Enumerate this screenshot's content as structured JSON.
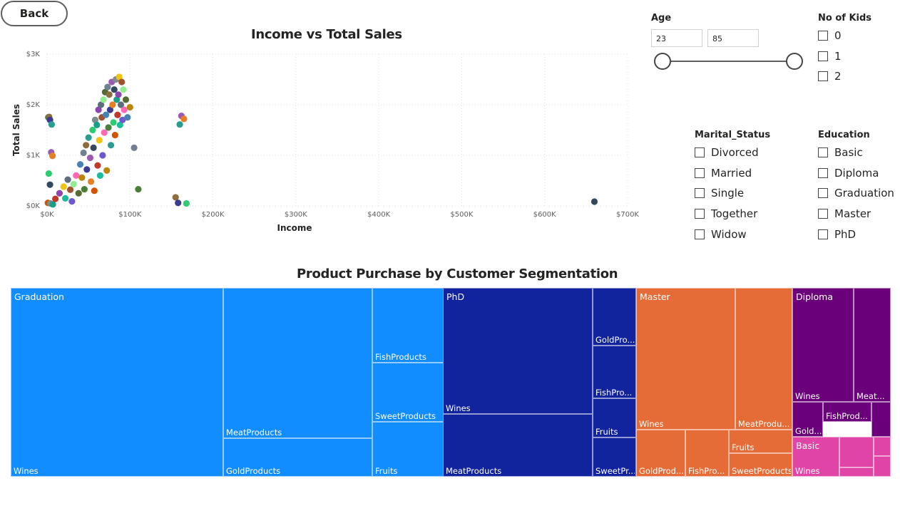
{
  "back_button": {
    "label": "Back"
  },
  "scatter": {
    "title": "Income vs Total Sales",
    "xlabel": "Income",
    "ylabel": "Total Sales",
    "x_ticks": [
      "$0K",
      "$100K",
      "$200K",
      "$300K",
      "$400K",
      "$500K",
      "$600K",
      "$700K"
    ],
    "y_ticks": [
      "$0K",
      "$1K",
      "$2K",
      "$3K"
    ]
  },
  "age_slicer": {
    "title": "Age",
    "min": "23",
    "max": "85",
    "range_low": 23,
    "range_high": 85
  },
  "kids_slicer": {
    "title": "No of Kids",
    "options": [
      "0",
      "1",
      "2"
    ]
  },
  "marital_slicer": {
    "title": "Marital_Status",
    "options": [
      "Divorced",
      "Married",
      "Single",
      "Together",
      "Widow"
    ]
  },
  "education_slicer": {
    "title": "Education",
    "options": [
      "Basic",
      "Diploma",
      "Graduation",
      "Master",
      "PhD"
    ]
  },
  "treemap": {
    "title": "Product Purchase by Customer Segmentation",
    "groups": [
      {
        "name": "Graduation",
        "color": "#118dff",
        "items": [
          {
            "label": "Wines"
          },
          {
            "label": "MeatProducts"
          },
          {
            "label": "GoldProducts"
          },
          {
            "label": "FishProducts"
          },
          {
            "label": "SweetProducts"
          },
          {
            "label": "Fruits"
          }
        ]
      },
      {
        "name": "PhD",
        "color": "#12239e",
        "items": [
          {
            "label": "Wines"
          },
          {
            "label": "MeatProducts"
          },
          {
            "label": "GoldPro..."
          },
          {
            "label": "FishPro..."
          },
          {
            "label": "Fruits"
          },
          {
            "label": "SweetPr..."
          }
        ]
      },
      {
        "name": "Master",
        "color": "#e66c37",
        "items": [
          {
            "label": "Wines"
          },
          {
            "label": "MeatProdu..."
          },
          {
            "label": "GoldProd..."
          },
          {
            "label": "FishPro..."
          },
          {
            "label": "Fruits"
          },
          {
            "label": "SweetProducts"
          }
        ]
      },
      {
        "name": "Diploma",
        "color": "#6b007b",
        "items": [
          {
            "label": "Wines"
          },
          {
            "label": "Meat..."
          },
          {
            "label": "Gold..."
          },
          {
            "label": "FishProd..."
          },
          {
            "label": ""
          }
        ]
      },
      {
        "name": "Basic",
        "color": "#e044a7",
        "items": [
          {
            "label": "Wines"
          },
          {
            "label": ""
          },
          {
            "label": ""
          },
          {
            "label": ""
          },
          {
            "label": ""
          }
        ]
      }
    ]
  },
  "chart_data": [
    {
      "type": "scatter",
      "title": "Income vs Total Sales",
      "xlabel": "Income",
      "ylabel": "Total Sales",
      "xlim": [
        0,
        700000
      ],
      "ylim": [
        0,
        3000
      ],
      "grid": true,
      "points": [
        [
          1500,
          1750
        ],
        [
          2500,
          1760
        ],
        [
          3500,
          1700
        ],
        [
          5500,
          1610
        ],
        [
          5000,
          1060
        ],
        [
          6500,
          990
        ],
        [
          2000,
          640
        ],
        [
          3500,
          420
        ],
        [
          1000,
          60
        ],
        [
          4000,
          50
        ],
        [
          7000,
          30
        ],
        [
          10000,
          140
        ],
        [
          15000,
          250
        ],
        [
          20000,
          380
        ],
        [
          22000,
          150
        ],
        [
          25000,
          520
        ],
        [
          28000,
          320
        ],
        [
          30000,
          90
        ],
        [
          32000,
          430
        ],
        [
          35000,
          600
        ],
        [
          38000,
          250
        ],
        [
          40000,
          820
        ],
        [
          42000,
          560
        ],
        [
          44000,
          1050
        ],
        [
          45000,
          330
        ],
        [
          47000,
          1200
        ],
        [
          48000,
          720
        ],
        [
          50000,
          1350
        ],
        [
          52000,
          950
        ],
        [
          53000,
          480
        ],
        [
          55000,
          1500
        ],
        [
          56000,
          1150
        ],
        [
          57000,
          300
        ],
        [
          58000,
          1700
        ],
        [
          60000,
          1600
        ],
        [
          61000,
          800
        ],
        [
          62000,
          1900
        ],
        [
          63000,
          1300
        ],
        [
          64000,
          600
        ],
        [
          65000,
          2000
        ],
        [
          66000,
          1750
        ],
        [
          67000,
          1000
        ],
        [
          68000,
          2100
        ],
        [
          69000,
          1450
        ],
        [
          70000,
          2250
        ],
        [
          71000,
          1800
        ],
        [
          72000,
          700
        ],
        [
          73000,
          2350
        ],
        [
          74000,
          1550
        ],
        [
          75000,
          2200
        ],
        [
          76000,
          1900
        ],
        [
          77000,
          1200
        ],
        [
          78000,
          2450
        ],
        [
          79000,
          2000
        ],
        [
          80000,
          1650
        ],
        [
          81000,
          2300
        ],
        [
          82000,
          1400
        ],
        [
          83000,
          2500
        ],
        [
          84000,
          2100
        ],
        [
          85000,
          1800
        ],
        [
          86000,
          2200
        ],
        [
          87000,
          2550
        ],
        [
          88000,
          1600
        ],
        [
          89000,
          2000
        ],
        [
          90000,
          2450
        ],
        [
          91000,
          1700
        ],
        [
          92000,
          2300
        ],
        [
          93000,
          1900
        ],
        [
          95000,
          2100
        ],
        [
          97000,
          1750
        ],
        [
          100000,
          1950
        ],
        [
          105000,
          1150
        ],
        [
          110000,
          330
        ],
        [
          155000,
          170
        ],
        [
          158000,
          60
        ],
        [
          160000,
          1610
        ],
        [
          162000,
          1780
        ],
        [
          165000,
          1720
        ],
        [
          168000,
          50
        ],
        [
          660000,
          85
        ]
      ]
    },
    {
      "type": "heatmap",
      "title": "Product Purchase by Customer Segmentation",
      "categories": [
        "Graduation",
        "PhD",
        "Master",
        "Diploma",
        "Basic"
      ],
      "series": [
        {
          "name": "Graduation",
          "values": {
            "Wines": 320000,
            "MeatProducts": 200000,
            "GoldProducts": 57000,
            "FishProducts": 55000,
            "SweetProducts": 33000,
            "Fruits": 26000
          }
        },
        {
          "name": "PhD",
          "values": {
            "Wines": 220000,
            "MeatProducts": 125000,
            "GoldPro...": 16000,
            "FishPro...": 16000,
            "Fruits": 10000,
            "SweetPr...": 10000
          }
        },
        {
          "name": "Master",
          "values": {
            "Wines": 120000,
            "MeatProdu...": 70000,
            "GoldProd...": 15000,
            "FishPro...": 14000,
            "Fruits": 6000,
            "SweetProducts": 8000
          }
        },
        {
          "name": "Diploma",
          "values": {
            "Wines": 43000,
            "Meat...": 24000,
            "Gold...": 7000,
            "FishProd...": 6000
          }
        },
        {
          "name": "Basic",
          "values": {
            "Wines": 3500,
            "MeatProducts": 1500,
            "GoldProducts": 1200
          }
        }
      ]
    }
  ]
}
